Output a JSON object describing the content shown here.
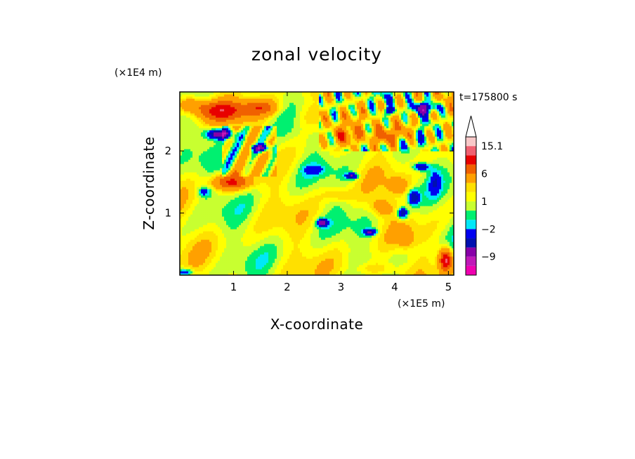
{
  "chart_data": {
    "type": "heatmap",
    "title": "zonal velocity",
    "xlabel": "X-coordinate",
    "ylabel": "Z-coordinate",
    "x_unit": "(×1E5 m)",
    "y_unit": "(×1E4 m)",
    "time_label": "t=175800 s",
    "xlim": [
      0,
      5.1
    ],
    "ylim": [
      0,
      2.95
    ],
    "xticks": [
      {
        "v": 1,
        "label": "1"
      },
      {
        "v": 2,
        "label": "2"
      },
      {
        "v": 3,
        "label": "3"
      },
      {
        "v": 4,
        "label": "4"
      },
      {
        "v": 5,
        "label": "5"
      }
    ],
    "yticks": [
      {
        "v": 1,
        "label": "1"
      },
      {
        "v": 2,
        "label": "2"
      }
    ],
    "colorbar": {
      "levels": [
        -15,
        -12,
        -9,
        -6,
        -4,
        -2,
        -1,
        0,
        1,
        2,
        3,
        6,
        9,
        12,
        15.1,
        18
      ],
      "colors": [
        "#ef00b0",
        "#c018b8",
        "#8800a8",
        "#0010b0",
        "#0000f0",
        "#00e8f8",
        "#00f070",
        "#c8ff30",
        "#ffff00",
        "#ffe000",
        "#ffa000",
        "#f06000",
        "#e80000",
        "#f06070",
        "#f8c8c8"
      ],
      "tick_labels": [
        {
          "v": 15.1,
          "label": "15.1"
        },
        {
          "v": 6,
          "label": "6"
        },
        {
          "v": 1,
          "label": "1"
        },
        {
          "v": -2,
          "label": "−2"
        },
        {
          "v": -9,
          "label": "−9"
        }
      ]
    }
  }
}
